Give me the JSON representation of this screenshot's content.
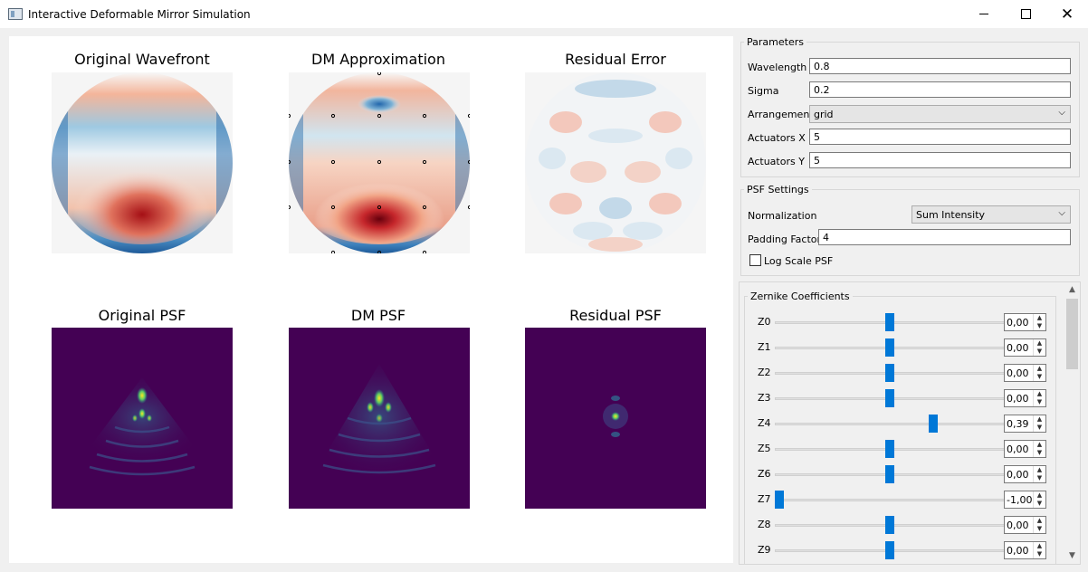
{
  "window": {
    "title": "Interactive Deformable Mirror Simulation",
    "minimize_icon": "minimize-icon",
    "maximize_icon": "maximize-icon",
    "close_icon": "close-icon",
    "close_glyph": "✕"
  },
  "plots": {
    "original_wavefront": "Original Wavefront",
    "dm_approximation": "DM Approximation",
    "residual_error": "Residual Error",
    "original_psf": "Original PSF",
    "dm_psf": "DM PSF",
    "residual_psf": "Residual PSF"
  },
  "parameters": {
    "title": "Parameters",
    "wavelength_label": "Wavelength",
    "wavelength_value": "0.8",
    "sigma_label": "Sigma",
    "sigma_value": "0.2",
    "arrangement_label": "Arrangement",
    "arrangement_value": "grid",
    "actuators_x_label": "Actuators X",
    "actuators_x_value": "5",
    "actuators_y_label": "Actuators Y",
    "actuators_y_value": "5"
  },
  "psf_settings": {
    "title": "PSF Settings",
    "normalization_label": "Normalization",
    "normalization_value": "Sum Intensity",
    "padding_label": "Padding Factor",
    "padding_value": "4",
    "log_scale_label": "Log Scale PSF",
    "log_scale_checked": false
  },
  "zernike": {
    "title": "Zernike Coefficients",
    "slider_min": -1.0,
    "slider_max": 1.0,
    "coefficients": [
      {
        "label": "Z0",
        "value": 0.0,
        "display": "0,00"
      },
      {
        "label": "Z1",
        "value": 0.0,
        "display": "0,00"
      },
      {
        "label": "Z2",
        "value": 0.0,
        "display": "0,00"
      },
      {
        "label": "Z3",
        "value": 0.0,
        "display": "0,00"
      },
      {
        "label": "Z4",
        "value": 0.39,
        "display": "0,39"
      },
      {
        "label": "Z5",
        "value": 0.0,
        "display": "0,00"
      },
      {
        "label": "Z6",
        "value": 0.0,
        "display": "0,00"
      },
      {
        "label": "Z7",
        "value": -1.0,
        "display": "-1,00"
      },
      {
        "label": "Z8",
        "value": 0.0,
        "display": "0,00"
      },
      {
        "label": "Z9",
        "value": 0.0,
        "display": "0,00"
      }
    ]
  },
  "colors": {
    "accent": "#0078d7",
    "psf_background": "#440154",
    "wavefront_red": "#a50f15",
    "wavefront_blue": "#2166ac"
  }
}
